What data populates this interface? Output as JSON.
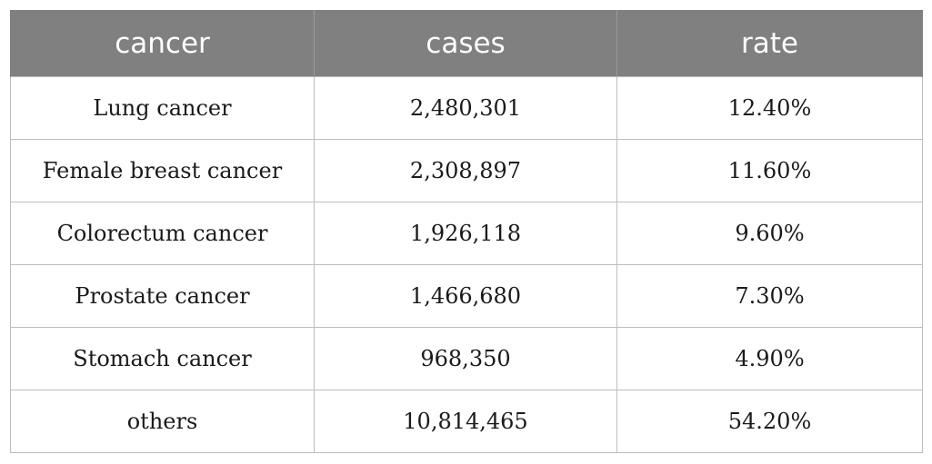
{
  "table": {
    "headers": [
      "cancer",
      "cases",
      "rate"
    ],
    "rows": [
      [
        "Lung cancer",
        "2,480,301",
        "12.40%"
      ],
      [
        "Female breast cancer",
        "2,308,897",
        "11.60%"
      ],
      [
        "Colorectum cancer",
        "1,926,118",
        "9.60%"
      ],
      [
        "Prostate cancer",
        "1,466,680",
        "7.30%"
      ],
      [
        "Stomach cancer",
        "968,350",
        "4.90%"
      ],
      [
        "others",
        "10,814,465",
        "54.20%"
      ]
    ],
    "header_bg": "#808080",
    "header_text_color": "#ffffff",
    "border_color": "#bdbdbd"
  }
}
